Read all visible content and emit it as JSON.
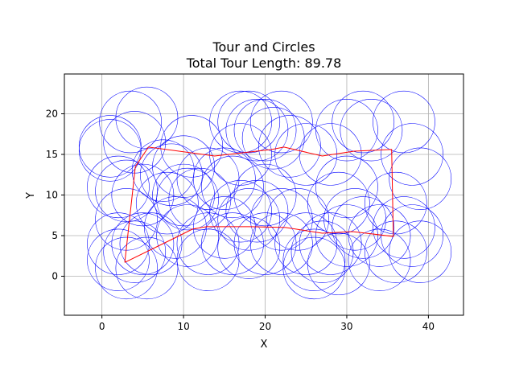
{
  "chart_data": {
    "type": "scatter",
    "title": "Tour and Circles",
    "subtitle": "Total Tour Length: 89.78",
    "xlabel": "X",
    "ylabel": "Y",
    "xlim": [
      -4.6,
      44.3
    ],
    "ylim": [
      -4.8,
      24.9
    ],
    "xticks": [
      0,
      10,
      20,
      30,
      40
    ],
    "yticks": [
      0,
      5,
      10,
      15,
      20
    ],
    "grid": true,
    "circle_radius": 3.8,
    "circle_color": "#0000ff",
    "tour_color": "#ff0000",
    "circle_centers": [
      [
        1,
        15.5
      ],
      [
        4,
        16.5
      ],
      [
        5.5,
        19.5
      ],
      [
        3.5,
        19
      ],
      [
        1,
        16
      ],
      [
        7.5,
        13
      ],
      [
        8.5,
        12.5
      ],
      [
        10,
        13.5
      ],
      [
        2,
        11
      ],
      [
        3,
        10.5
      ],
      [
        5,
        10
      ],
      [
        3,
        7
      ],
      [
        2,
        4
      ],
      [
        5,
        4
      ],
      [
        4,
        3
      ],
      [
        2,
        2
      ],
      [
        3,
        1
      ],
      [
        5.5,
        1
      ],
      [
        6,
        4
      ],
      [
        8,
        9
      ],
      [
        10,
        10
      ],
      [
        10.5,
        9.5
      ],
      [
        12,
        9.5
      ],
      [
        9,
        6
      ],
      [
        10.5,
        5
      ],
      [
        13,
        4
      ],
      [
        13,
        2
      ],
      [
        15,
        6
      ],
      [
        11,
        16
      ],
      [
        13,
        12
      ],
      [
        15,
        12
      ],
      [
        16,
        11
      ],
      [
        17,
        15
      ],
      [
        18,
        19
      ],
      [
        19,
        18
      ],
      [
        17,
        19
      ],
      [
        20,
        18
      ],
      [
        17,
        8
      ],
      [
        18,
        7
      ],
      [
        19,
        8
      ],
      [
        20,
        10
      ],
      [
        16,
        4
      ],
      [
        18,
        3.5
      ],
      [
        20,
        4
      ],
      [
        22,
        4
      ],
      [
        22,
        7
      ],
      [
        24,
        7
      ],
      [
        22,
        19
      ],
      [
        23,
        16
      ],
      [
        25,
        15
      ],
      [
        21,
        17
      ],
      [
        27,
        3
      ],
      [
        26,
        2
      ],
      [
        25,
        4
      ],
      [
        28,
        4
      ],
      [
        26,
        1
      ],
      [
        29,
        1.5
      ],
      [
        28,
        15
      ],
      [
        30,
        18
      ],
      [
        32,
        19
      ],
      [
        33,
        18
      ],
      [
        30,
        11
      ],
      [
        29,
        9
      ],
      [
        31,
        7
      ],
      [
        30,
        5
      ],
      [
        32,
        6
      ],
      [
        34,
        5
      ],
      [
        34,
        2
      ],
      [
        36,
        3
      ],
      [
        37,
        6
      ],
      [
        36,
        9
      ],
      [
        38,
        15
      ],
      [
        37,
        19
      ],
      [
        39,
        12
      ],
      [
        38,
        5
      ],
      [
        39,
        3
      ]
    ],
    "tour": [
      [
        2.8,
        1.7
      ],
      [
        4.1,
        13.5
      ],
      [
        5.7,
        15.9
      ],
      [
        13.8,
        14.8
      ],
      [
        20.8,
        15.6
      ],
      [
        22.3,
        15.9
      ],
      [
        27.0,
        14.8
      ],
      [
        30.9,
        15.4
      ],
      [
        35.5,
        15.6
      ],
      [
        35.7,
        4.9
      ],
      [
        30.7,
        5.5
      ],
      [
        27.0,
        5.3
      ],
      [
        22.5,
        6.0
      ],
      [
        18.2,
        6.1
      ],
      [
        12.8,
        6.1
      ],
      [
        11.1,
        5.8
      ],
      [
        9.1,
        4.8
      ],
      [
        2.8,
        1.7
      ]
    ]
  }
}
